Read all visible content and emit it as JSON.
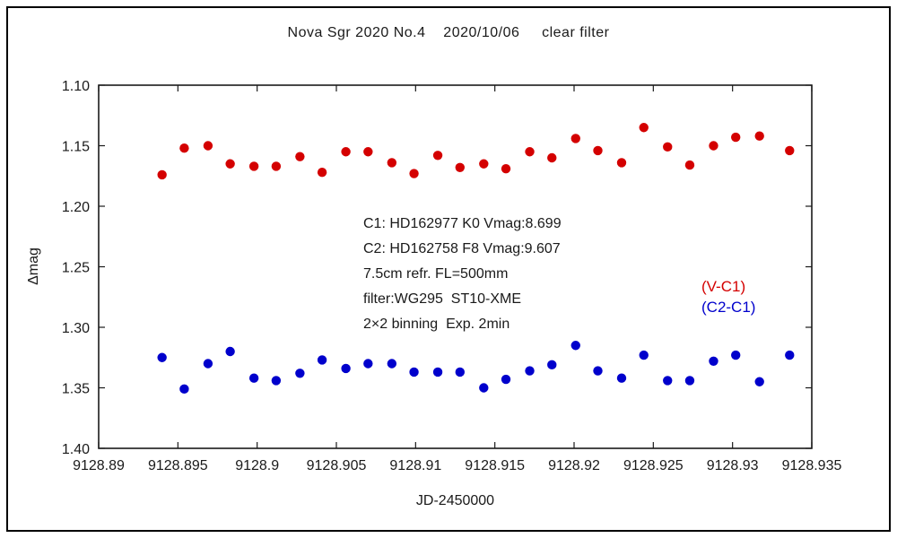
{
  "chart_data": {
    "type": "scatter",
    "title": "Nova Sgr 2020 No.4    2020/10/06     clear filter",
    "xlabel": "JD-2450000",
    "ylabel": "Δmag",
    "xlim": [
      9128.89,
      9128.935
    ],
    "ylim": [
      1.1,
      1.4
    ],
    "y_axis_inverted_magnitude": true,
    "grid": false,
    "axis_color": "#1a1a1a",
    "xticks": [
      {
        "value": 9128.89,
        "label": "9128.89"
      },
      {
        "value": 9128.895,
        "label": "9128.895"
      },
      {
        "value": 9128.9,
        "label": "9128.9"
      },
      {
        "value": 9128.905,
        "label": "9128.905"
      },
      {
        "value": 9128.91,
        "label": "9128.91"
      },
      {
        "value": 9128.915,
        "label": "9128.915"
      },
      {
        "value": 9128.92,
        "label": "9128.92"
      },
      {
        "value": 9128.925,
        "label": "9128.925"
      },
      {
        "value": 9128.93,
        "label": "9128.93"
      },
      {
        "value": 9128.935,
        "label": "9128.935"
      }
    ],
    "yticks": [
      {
        "value": 1.1,
        "label": "1.10"
      },
      {
        "value": 1.15,
        "label": "1.15"
      },
      {
        "value": 1.2,
        "label": "1.20"
      },
      {
        "value": 1.25,
        "label": "1.25"
      },
      {
        "value": 1.3,
        "label": "1.30"
      },
      {
        "value": 1.35,
        "label": "1.35"
      },
      {
        "value": 1.4,
        "label": "1.40"
      }
    ],
    "legend": [
      {
        "label": "(V-C1)",
        "color": "#d40000"
      },
      {
        "label": "(C2-C1)",
        "color": "#0000cc"
      }
    ],
    "annotation_lines": [
      "C1: HD162977 K0 Vmag:8.699",
      "C2: HD162758 F8 Vmag:9.607",
      "7.5cm refr. FL=500mm",
      "filter:WG295  ST10-XME",
      "2×2 binning  Exp. 2min"
    ],
    "series": [
      {
        "name": "V-C1",
        "color": "#d40000",
        "points": [
          [
            9128.894,
            1.174
          ],
          [
            9128.8954,
            1.152
          ],
          [
            9128.8969,
            1.15
          ],
          [
            9128.8983,
            1.165
          ],
          [
            9128.8998,
            1.167
          ],
          [
            9128.9012,
            1.167
          ],
          [
            9128.9027,
            1.159
          ],
          [
            9128.9041,
            1.172
          ],
          [
            9128.9056,
            1.155
          ],
          [
            9128.907,
            1.155
          ],
          [
            9128.9085,
            1.164
          ],
          [
            9128.9099,
            1.173
          ],
          [
            9128.9114,
            1.158
          ],
          [
            9128.9128,
            1.168
          ],
          [
            9128.9143,
            1.165
          ],
          [
            9128.9157,
            1.169
          ],
          [
            9128.9172,
            1.155
          ],
          [
            9128.9186,
            1.16
          ],
          [
            9128.9201,
            1.144
          ],
          [
            9128.9215,
            1.154
          ],
          [
            9128.923,
            1.164
          ],
          [
            9128.9244,
            1.135
          ],
          [
            9128.9259,
            1.151
          ],
          [
            9128.9273,
            1.166
          ],
          [
            9128.9288,
            1.15
          ],
          [
            9128.9302,
            1.143
          ],
          [
            9128.9317,
            1.142
          ],
          [
            9128.9336,
            1.154
          ]
        ]
      },
      {
        "name": "C2-C1",
        "color": "#0000cc",
        "points": [
          [
            9128.894,
            1.325
          ],
          [
            9128.8954,
            1.351
          ],
          [
            9128.8969,
            1.33
          ],
          [
            9128.8983,
            1.32
          ],
          [
            9128.8998,
            1.342
          ],
          [
            9128.9012,
            1.344
          ],
          [
            9128.9027,
            1.338
          ],
          [
            9128.9041,
            1.327
          ],
          [
            9128.9056,
            1.334
          ],
          [
            9128.907,
            1.33
          ],
          [
            9128.9085,
            1.33
          ],
          [
            9128.9099,
            1.337
          ],
          [
            9128.9114,
            1.337
          ],
          [
            9128.9128,
            1.337
          ],
          [
            9128.9143,
            1.35
          ],
          [
            9128.9157,
            1.343
          ],
          [
            9128.9172,
            1.336
          ],
          [
            9128.9186,
            1.331
          ],
          [
            9128.9201,
            1.315
          ],
          [
            9128.9215,
            1.336
          ],
          [
            9128.923,
            1.342
          ],
          [
            9128.9244,
            1.323
          ],
          [
            9128.9259,
            1.344
          ],
          [
            9128.9273,
            1.344
          ],
          [
            9128.9288,
            1.328
          ],
          [
            9128.9302,
            1.323
          ],
          [
            9128.9317,
            1.345
          ],
          [
            9128.9336,
            1.323
          ]
        ]
      }
    ]
  }
}
